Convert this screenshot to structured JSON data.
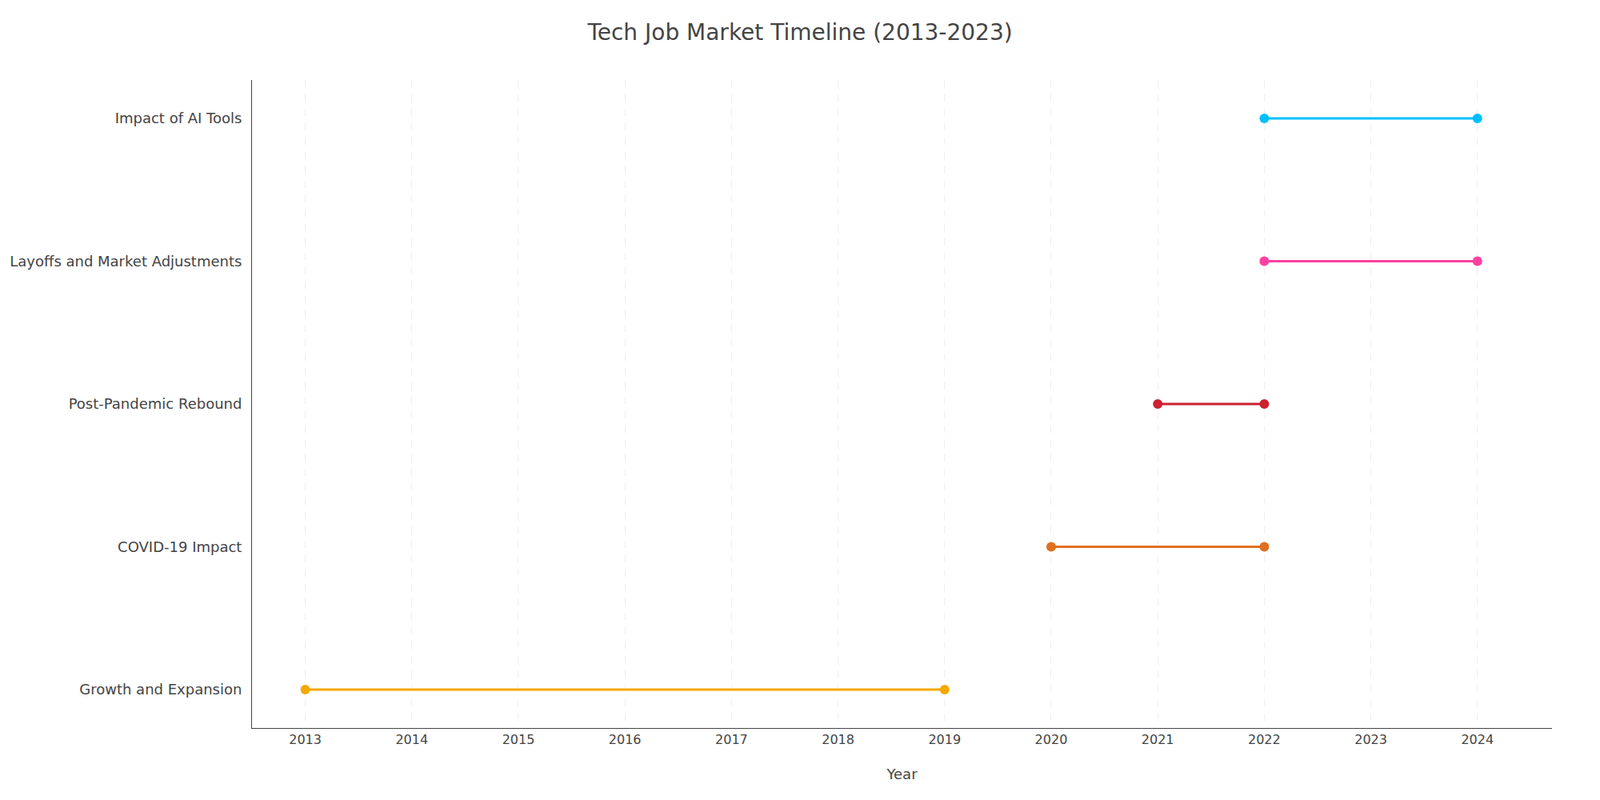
{
  "chart_data": {
    "type": "timeline",
    "title": "Tech Job Market Timeline (2013-2023)",
    "x_label": "Year",
    "categories": [
      "Growth and Expansion",
      "COVID-19 Impact",
      "Post-Pandemic Rebound",
      "Layoffs and Market Adjustments",
      "Impact of AI Tools"
    ],
    "start": [
      2013,
      2020,
      2021,
      2022,
      2022
    ],
    "end": [
      2019,
      2022,
      2022,
      2024,
      2024
    ],
    "colors": [
      "#F5A800",
      "#E07020",
      "#CC2030",
      "#FF40A0",
      "#00BFFF"
    ],
    "orientation": "horizontal",
    "xlim": [
      2012.5,
      2024.7
    ],
    "xticks": [
      2013,
      2014,
      2015,
      2016,
      2017,
      2018,
      2019,
      2020,
      2021,
      2022,
      2023,
      2024
    ],
    "grid": "x"
  }
}
